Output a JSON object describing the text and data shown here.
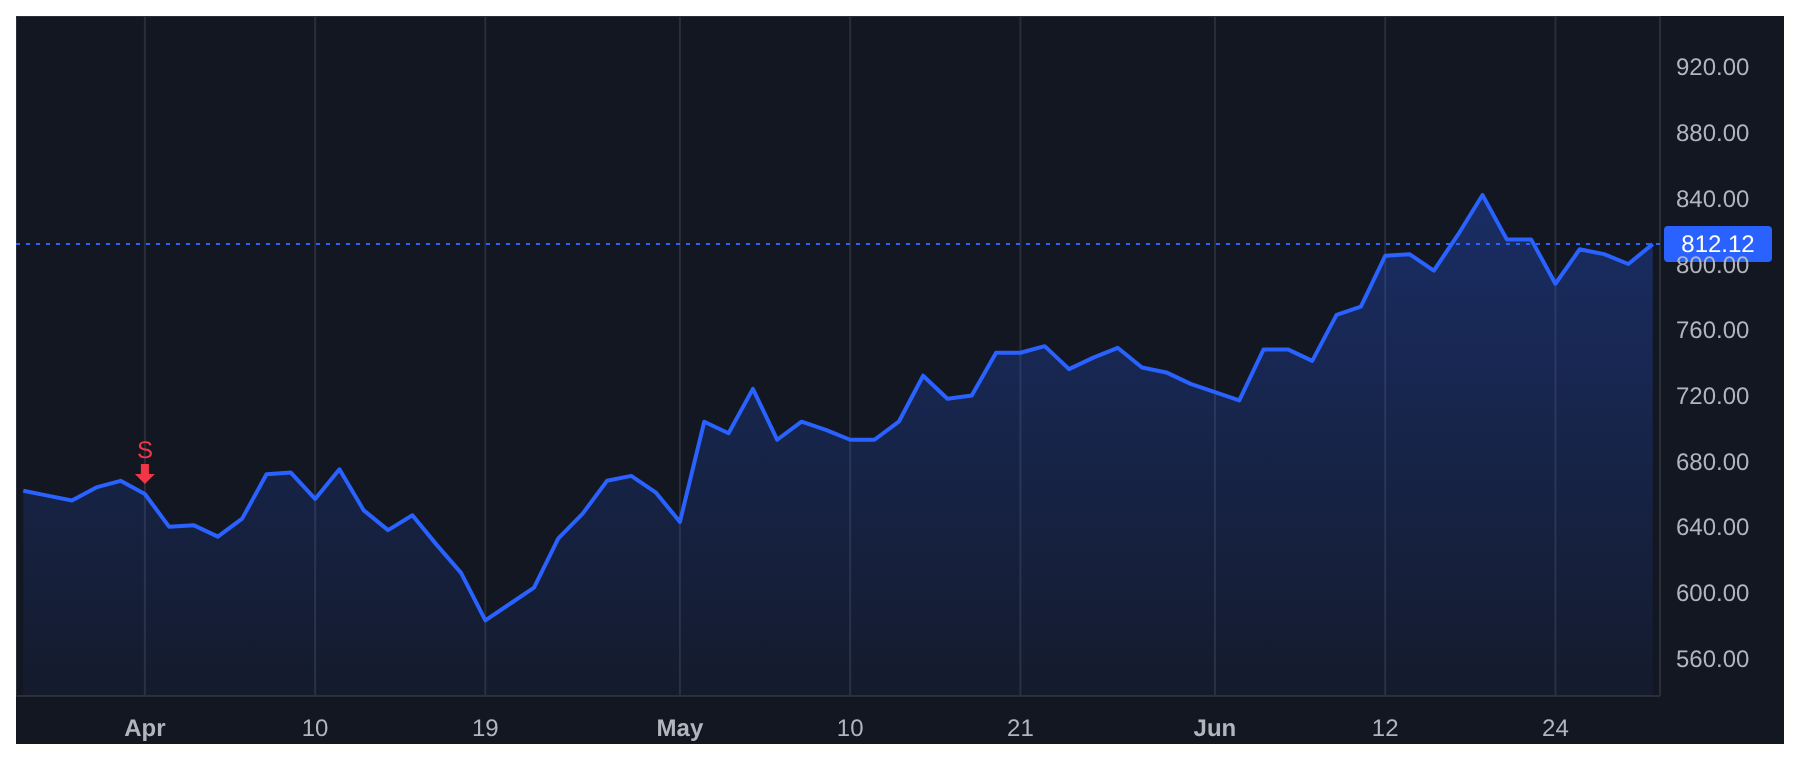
{
  "chart_data": {
    "type": "area",
    "categories": [
      null,
      null,
      null,
      null,
      null,
      "Apr",
      null,
      null,
      null,
      null,
      null,
      null,
      "10",
      null,
      null,
      null,
      null,
      null,
      null,
      "19",
      null,
      null,
      null,
      null,
      null,
      null,
      null,
      "May",
      null,
      null,
      null,
      null,
      null,
      null,
      "10",
      null,
      null,
      null,
      null,
      null,
      null,
      "21",
      null,
      null,
      null,
      null,
      null,
      null,
      null,
      "Jun",
      null,
      null,
      null,
      null,
      null,
      null,
      "12",
      null,
      null,
      null,
      null,
      null,
      null,
      "24",
      null,
      null,
      null,
      null
    ],
    "series": [
      {
        "color": "#2962ff",
        "values": [
          662,
          659,
          656,
          664,
          668,
          660,
          640,
          641,
          634,
          645,
          672,
          673,
          657,
          675,
          650,
          638,
          647,
          629,
          612,
          583,
          593,
          603,
          633,
          648,
          668,
          671,
          661,
          643,
          704,
          697,
          724,
          693,
          704,
          699,
          693,
          693,
          704,
          732,
          718,
          720,
          746,
          746,
          750,
          736,
          743,
          749,
          737,
          734,
          727,
          722,
          717,
          748,
          748,
          741,
          769,
          774,
          805,
          806,
          796,
          818,
          842,
          815,
          815,
          788,
          809,
          806,
          800,
          812.12
        ]
      }
    ],
    "ylim": [
      537,
      951
    ],
    "yticks": [
      {
        "value": 560,
        "label": "560.00"
      },
      {
        "value": 600,
        "label": "600.00"
      },
      {
        "value": 640,
        "label": "640.00"
      },
      {
        "value": 680,
        "label": "680.00"
      },
      {
        "value": 720,
        "label": "720.00"
      },
      {
        "value": 760,
        "label": "760.00"
      },
      {
        "value": 800,
        "label": "800.00"
      },
      {
        "value": 840,
        "label": "840.00"
      },
      {
        "value": 880,
        "label": "880.00"
      },
      {
        "value": 920,
        "label": "920.00"
      }
    ],
    "grid": true,
    "legend": false,
    "marker": "none",
    "line_style": "solid",
    "ref_lines": [
      {
        "axis": "y",
        "value": 812.12,
        "label": "812.12",
        "color": "#2962ff",
        "line_style": "dotted"
      }
    ],
    "annotations": [
      {
        "text": "S",
        "x": "Apr",
        "y": 660
      }
    ]
  }
}
